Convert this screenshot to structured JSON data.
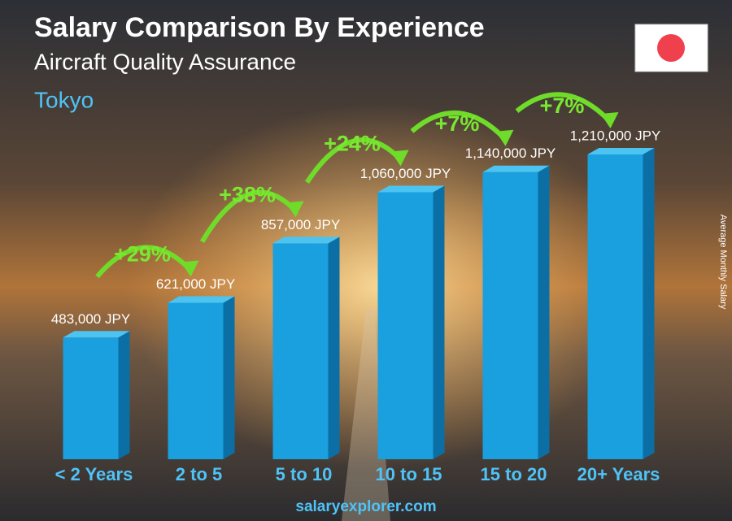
{
  "chart_data": {
    "type": "bar",
    "title": "Salary Comparison By Experience",
    "subtitle": "Aircraft Quality Assurance",
    "location": "Tokyo",
    "y_label": "Average Monthly Salary",
    "categories": [
      "< 2 Years",
      "2 to 5",
      "5 to 10",
      "10 to 15",
      "15 to 20",
      "20+ Years"
    ],
    "values": [
      483000,
      621000,
      857000,
      1060000,
      1140000,
      1210000
    ],
    "value_labels": [
      "483,000 JPY",
      "621,000 JPY",
      "857,000 JPY",
      "1,060,000 JPY",
      "1,140,000 JPY",
      "1,210,000 JPY"
    ],
    "changes": [
      "+29%",
      "+38%",
      "+24%",
      "+7%",
      "+7%"
    ],
    "color": "#1a9fdf",
    "footer": "salaryexplorer.com"
  }
}
